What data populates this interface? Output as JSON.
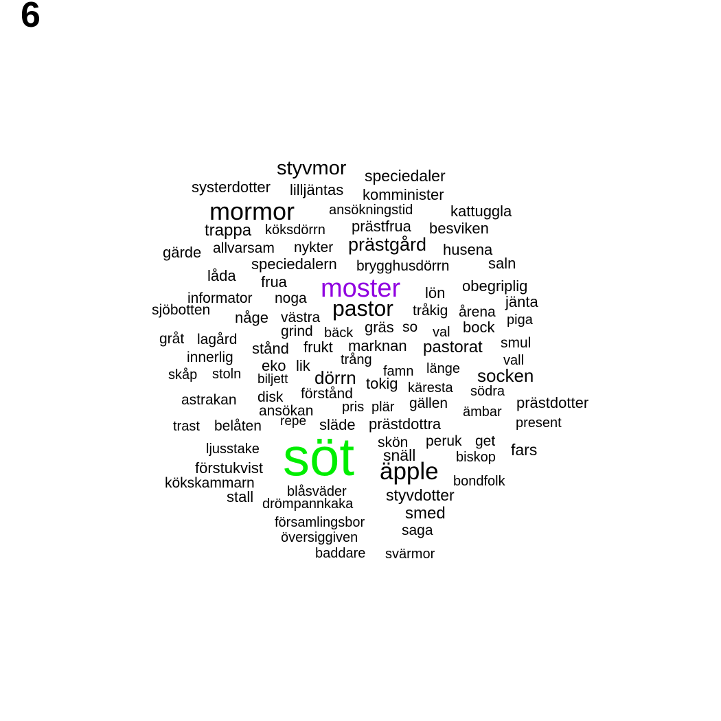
{
  "panel_label": "6",
  "colors": {
    "highlight_large": "#00ee00",
    "highlight_medium": "#9000e0",
    "default": "#000000"
  },
  "words": [
    {
      "text": "styvmor",
      "color": "#000000"
    },
    {
      "text": "speciedaler",
      "color": "#000000"
    },
    {
      "text": "systerdotter",
      "color": "#000000"
    },
    {
      "text": "lilljäntas",
      "color": "#000000"
    },
    {
      "text": "komminister",
      "color": "#000000"
    },
    {
      "text": "mormor",
      "color": "#000000"
    },
    {
      "text": "ansökningstid",
      "color": "#000000"
    },
    {
      "text": "kattuggla",
      "color": "#000000"
    },
    {
      "text": "trappa",
      "color": "#000000"
    },
    {
      "text": "köksdörrn",
      "color": "#000000"
    },
    {
      "text": "prästfrua",
      "color": "#000000"
    },
    {
      "text": "besviken",
      "color": "#000000"
    },
    {
      "text": "gärde",
      "color": "#000000"
    },
    {
      "text": "allvarsam",
      "color": "#000000"
    },
    {
      "text": "nykter",
      "color": "#000000"
    },
    {
      "text": "prästgård",
      "color": "#000000"
    },
    {
      "text": "husena",
      "color": "#000000"
    },
    {
      "text": "speciedalern",
      "color": "#000000"
    },
    {
      "text": "brygghusdörrn",
      "color": "#000000"
    },
    {
      "text": "saln",
      "color": "#000000"
    },
    {
      "text": "låda",
      "color": "#000000"
    },
    {
      "text": "frua",
      "color": "#000000"
    },
    {
      "text": "moster",
      "color": "#9000e0"
    },
    {
      "text": "lön",
      "color": "#000000"
    },
    {
      "text": "obegriplig",
      "color": "#000000"
    },
    {
      "text": "informator",
      "color": "#000000"
    },
    {
      "text": "noga",
      "color": "#000000"
    },
    {
      "text": "jänta",
      "color": "#000000"
    },
    {
      "text": "sjöbotten",
      "color": "#000000"
    },
    {
      "text": "pastor",
      "color": "#000000"
    },
    {
      "text": "tråkig",
      "color": "#000000"
    },
    {
      "text": "årena",
      "color": "#000000"
    },
    {
      "text": "någe",
      "color": "#000000"
    },
    {
      "text": "västra",
      "color": "#000000"
    },
    {
      "text": "piga",
      "color": "#000000"
    },
    {
      "text": "gräs",
      "color": "#000000"
    },
    {
      "text": "so",
      "color": "#000000"
    },
    {
      "text": "grind",
      "color": "#000000"
    },
    {
      "text": "bäck",
      "color": "#000000"
    },
    {
      "text": "val",
      "color": "#000000"
    },
    {
      "text": "bock",
      "color": "#000000"
    },
    {
      "text": "gråt",
      "color": "#000000"
    },
    {
      "text": "lagård",
      "color": "#000000"
    },
    {
      "text": "smul",
      "color": "#000000"
    },
    {
      "text": "stånd",
      "color": "#000000"
    },
    {
      "text": "frukt",
      "color": "#000000"
    },
    {
      "text": "marknan",
      "color": "#000000"
    },
    {
      "text": "pastorat",
      "color": "#000000"
    },
    {
      "text": "innerlig",
      "color": "#000000"
    },
    {
      "text": "trång",
      "color": "#000000"
    },
    {
      "text": "vall",
      "color": "#000000"
    },
    {
      "text": "eko",
      "color": "#000000"
    },
    {
      "text": "lik",
      "color": "#000000"
    },
    {
      "text": "famn",
      "color": "#000000"
    },
    {
      "text": "länge",
      "color": "#000000"
    },
    {
      "text": "skåp",
      "color": "#000000"
    },
    {
      "text": "stoln",
      "color": "#000000"
    },
    {
      "text": "biljett",
      "color": "#000000"
    },
    {
      "text": "dörrn",
      "color": "#000000"
    },
    {
      "text": "socken",
      "color": "#000000"
    },
    {
      "text": "tokig",
      "color": "#000000"
    },
    {
      "text": "käresta",
      "color": "#000000"
    },
    {
      "text": "södra",
      "color": "#000000"
    },
    {
      "text": "astrakan",
      "color": "#000000"
    },
    {
      "text": "disk",
      "color": "#000000"
    },
    {
      "text": "förstånd",
      "color": "#000000"
    },
    {
      "text": "gällen",
      "color": "#000000"
    },
    {
      "text": "prästdotter",
      "color": "#000000"
    },
    {
      "text": "ansökan",
      "color": "#000000"
    },
    {
      "text": "pris",
      "color": "#000000"
    },
    {
      "text": "plär",
      "color": "#000000"
    },
    {
      "text": "ämbar",
      "color": "#000000"
    },
    {
      "text": "trast",
      "color": "#000000"
    },
    {
      "text": "belåten",
      "color": "#000000"
    },
    {
      "text": "repe",
      "color": "#000000"
    },
    {
      "text": "släde",
      "color": "#000000"
    },
    {
      "text": "prästdottra",
      "color": "#000000"
    },
    {
      "text": "present",
      "color": "#000000"
    },
    {
      "text": "skön",
      "color": "#000000"
    },
    {
      "text": "peruk",
      "color": "#000000"
    },
    {
      "text": "get",
      "color": "#000000"
    },
    {
      "text": "ljusstake",
      "color": "#000000"
    },
    {
      "text": "söt",
      "color": "#00ee00"
    },
    {
      "text": "snäll",
      "color": "#000000"
    },
    {
      "text": "biskop",
      "color": "#000000"
    },
    {
      "text": "fars",
      "color": "#000000"
    },
    {
      "text": "förstukvist",
      "color": "#000000"
    },
    {
      "text": "äpple",
      "color": "#000000"
    },
    {
      "text": "kökskammarn",
      "color": "#000000"
    },
    {
      "text": "bondfolk",
      "color": "#000000"
    },
    {
      "text": "blåsväder",
      "color": "#000000"
    },
    {
      "text": "stall",
      "color": "#000000"
    },
    {
      "text": "styvdotter",
      "color": "#000000"
    },
    {
      "text": "drömpannkaka",
      "color": "#000000"
    },
    {
      "text": "smed",
      "color": "#000000"
    },
    {
      "text": "församlingsbor",
      "color": "#000000"
    },
    {
      "text": "saga",
      "color": "#000000"
    },
    {
      "text": "översiggiven",
      "color": "#000000"
    },
    {
      "text": "baddare",
      "color": "#000000"
    },
    {
      "text": "svärmor",
      "color": "#000000"
    }
  ]
}
